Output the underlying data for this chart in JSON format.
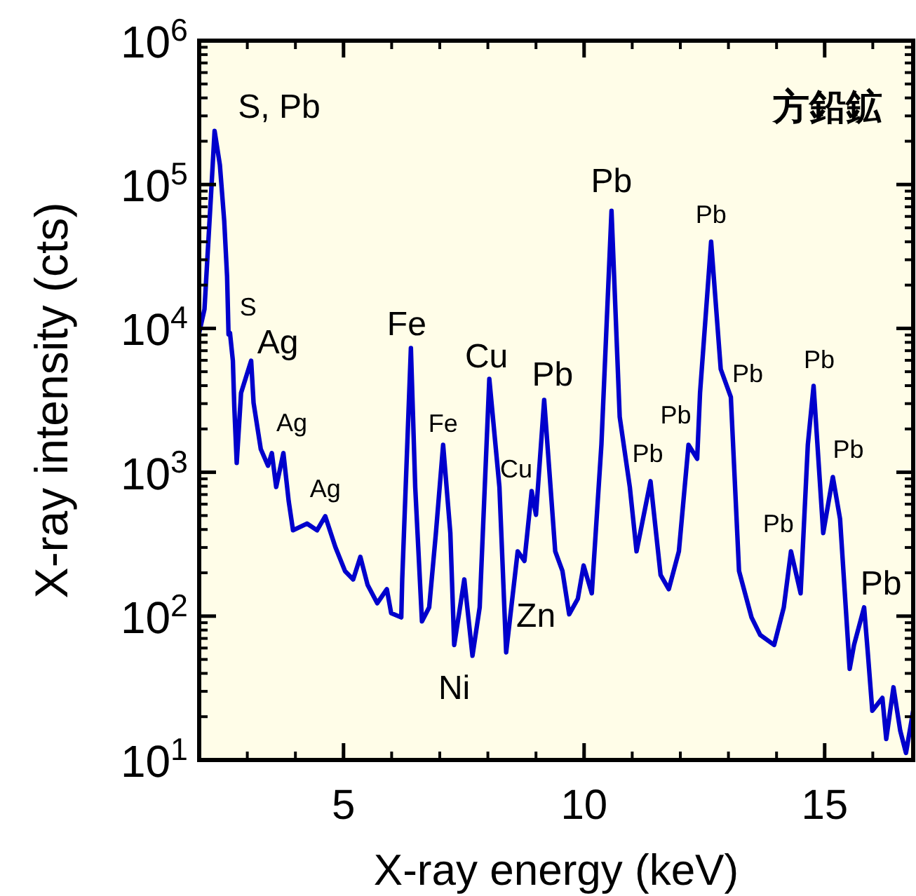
{
  "chart_data": {
    "type": "line",
    "xlabel": "X-ray energy (keV)",
    "ylabel": "X-ray intensity (cts)",
    "log": "y",
    "xlim": [
      2,
      16.84
    ],
    "xticks": [
      5,
      10,
      15
    ],
    "ylim": [
      10,
      1000000
    ],
    "yticks": [
      {
        "value": 10,
        "label": "10$^{1}$"
      },
      {
        "value": 100,
        "label": "10$^{2}$"
      },
      {
        "value": 1000,
        "label": "10$^{3}$"
      },
      {
        "value": 10000,
        "label": "10$^{4}$"
      },
      {
        "value": 100000,
        "label": "10$^{5}$"
      },
      {
        "value": 1000000,
        "label": "10$^{6}$"
      }
    ],
    "series": [
      {
        "color": "#0000cc",
        "x": [
          2.0,
          2.11,
          2.26,
          2.32,
          2.43,
          2.52,
          2.58,
          2.61,
          2.64,
          2.7,
          2.73,
          2.78,
          2.87,
          3.08,
          3.13,
          3.28,
          3.43,
          3.51,
          3.6,
          3.75,
          3.86,
          3.95,
          4.24,
          4.45,
          4.62,
          4.83,
          5.03,
          5.2,
          5.35,
          5.5,
          5.7,
          5.9,
          5.99,
          6.2,
          6.22,
          6.4,
          6.49,
          6.63,
          6.78,
          6.92,
          7.07,
          7.22,
          7.3,
          7.51,
          7.68,
          7.83,
          8.03,
          8.24,
          8.38,
          8.62,
          8.76,
          8.91,
          9.0,
          9.17,
          9.4,
          9.55,
          9.69,
          9.87,
          9.99,
          10.16,
          10.36,
          10.57,
          10.74,
          10.95,
          11.09,
          11.38,
          11.59,
          11.76,
          11.97,
          12.17,
          12.35,
          12.41,
          12.64,
          12.84,
          13.05,
          13.22,
          13.48,
          13.66,
          13.95,
          14.15,
          14.3,
          14.5,
          14.65,
          14.77,
          14.97,
          15.17,
          15.32,
          15.52,
          15.61,
          15.82,
          15.9,
          15.99,
          16.2,
          16.28,
          16.43,
          16.57,
          16.69,
          16.84
        ],
        "values": [
          9300,
          13600,
          103000,
          236000,
          137000,
          56000,
          22900,
          9100,
          9300,
          5960,
          2840,
          1160,
          3560,
          5960,
          3040,
          1450,
          1110,
          1360,
          790,
          1360,
          630,
          395,
          440,
          395,
          495,
          302,
          206,
          180,
          258,
          165,
          123,
          154,
          105,
          98,
          180,
          7300,
          790,
          92,
          115,
          378,
          1550,
          378,
          63,
          180,
          53,
          115,
          4450,
          790,
          56,
          282,
          242,
          740,
          506,
          3180,
          282,
          206,
          103,
          132,
          225,
          144,
          1560,
          65600,
          2430,
          790,
          282,
          867,
          193,
          154,
          282,
          1550,
          1240,
          3560,
          40100,
          5210,
          3330,
          206,
          98,
          74,
          63,
          115,
          282,
          144,
          1550,
          3980,
          378,
          927,
          473,
          43,
          63,
          115,
          54,
          22,
          27,
          14,
          32,
          16,
          11.2,
          22
        ]
      }
    ],
    "annotations": [
      {
        "text": "S, Pb",
        "x": 2.32,
        "y": 236000
      },
      {
        "text": "S",
        "x": 2.61,
        "y": 9100
      },
      {
        "text": "Ag",
        "x": 3.08,
        "y": 5960
      },
      {
        "text": "Ag",
        "x": 3.75,
        "y": 1360
      },
      {
        "text": "Ag",
        "x": 4.62,
        "y": 495
      },
      {
        "text": "Fe",
        "x": 6.4,
        "y": 7300
      },
      {
        "text": "Fe",
        "x": 7.07,
        "y": 1550
      },
      {
        "text": "Ni",
        "x": 7.68,
        "y": 53
      },
      {
        "text": "Cu",
        "x": 8.03,
        "y": 4450
      },
      {
        "text": "Cu",
        "x": 8.91,
        "y": 740
      },
      {
        "text": "Zn",
        "x": 8.62,
        "y": 282
      },
      {
        "text": "Pb",
        "x": 9.17,
        "y": 3180
      },
      {
        "text": "Pb",
        "x": 10.57,
        "y": 65600
      },
      {
        "text": "Pb",
        "x": 11.38,
        "y": 867
      },
      {
        "text": "Pb",
        "x": 12.17,
        "y": 1550
      },
      {
        "text": "Pb",
        "x": 12.64,
        "y": 40100
      },
      {
        "text": "Pb",
        "x": 13.05,
        "y": 3330
      },
      {
        "text": "Pb",
        "x": 14.3,
        "y": 282
      },
      {
        "text": "Pb",
        "x": 14.77,
        "y": 3980
      },
      {
        "text": "Pb",
        "x": 15.17,
        "y": 927
      },
      {
        "text": "Pb",
        "x": 15.82,
        "y": 115
      },
      "方鉛鉱"
    ]
  }
}
